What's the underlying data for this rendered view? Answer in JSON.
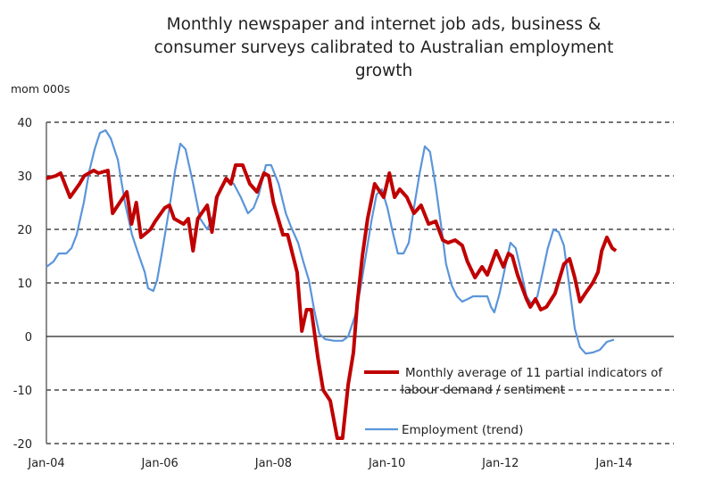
{
  "chart_data": {
    "type": "line",
    "title_lines": [
      "Monthly newspaper and internet job ads, business &",
      "consumer surveys calibrated to Australian employment",
      "growth"
    ],
    "ylabel": "mom 000s",
    "xlabel": "",
    "x_unit": "months since Jan-04",
    "xlim": [
      0,
      132
    ],
    "ylim": [
      -20,
      40
    ],
    "yticks": [
      -20,
      -10,
      0,
      10,
      20,
      30,
      40
    ],
    "xticks": [
      {
        "x": 0,
        "label": "Jan-04"
      },
      {
        "x": 24,
        "label": "Jan-06"
      },
      {
        "x": 48,
        "label": "Jan-08"
      },
      {
        "x": 72,
        "label": "Jan-10"
      },
      {
        "x": 96,
        "label": "Jan-12"
      },
      {
        "x": 120,
        "label": "Jan-14"
      }
    ],
    "grid": true,
    "legend_placement": "bottom-right",
    "series": [
      {
        "name": "Monthly average of 11 partial indicators of labour demand / sentiment",
        "legend_lines": [
          "Monthly average of 11 partial indicators of",
          "labour demand / sentiment"
        ],
        "color": "#C00000",
        "points": [
          [
            0,
            29.5
          ],
          [
            2,
            30
          ],
          [
            3,
            30.5
          ],
          [
            5,
            26
          ],
          [
            7,
            28.5
          ],
          [
            8,
            30
          ],
          [
            10,
            31
          ],
          [
            11,
            30.5
          ],
          [
            13,
            31
          ],
          [
            14,
            23
          ],
          [
            17,
            27
          ],
          [
            18,
            21
          ],
          [
            19,
            25
          ],
          [
            20,
            18.5
          ],
          [
            22,
            20
          ],
          [
            23,
            21.5
          ],
          [
            25,
            24
          ],
          [
            26,
            24.5
          ],
          [
            27,
            22
          ],
          [
            29,
            21
          ],
          [
            30,
            22
          ],
          [
            31,
            16
          ],
          [
            32,
            22
          ],
          [
            34,
            24.5
          ],
          [
            35,
            19.5
          ],
          [
            36,
            26
          ],
          [
            38,
            29.5
          ],
          [
            39,
            28.5
          ],
          [
            40,
            32
          ],
          [
            41.5,
            32
          ],
          [
            43,
            28.5
          ],
          [
            44.5,
            27
          ],
          [
            46,
            30.5
          ],
          [
            47,
            30
          ],
          [
            48,
            25
          ],
          [
            50,
            19
          ],
          [
            51,
            19
          ],
          [
            53,
            12
          ],
          [
            54,
            1
          ],
          [
            55,
            5
          ],
          [
            56,
            5
          ],
          [
            57.4,
            -4
          ],
          [
            58.5,
            -10
          ],
          [
            60,
            -12
          ],
          [
            61.5,
            -19
          ],
          [
            62.6,
            -19
          ],
          [
            63.8,
            -9
          ],
          [
            64.9,
            -3
          ],
          [
            65.7,
            6
          ],
          [
            66.8,
            15
          ],
          [
            67.9,
            22
          ],
          [
            69.4,
            28.5
          ],
          [
            71.3,
            26
          ],
          [
            72.5,
            30.5
          ],
          [
            73.6,
            26
          ],
          [
            74.7,
            27.5
          ],
          [
            76.2,
            26
          ],
          [
            77.7,
            23
          ],
          [
            79.2,
            24.5
          ],
          [
            80.8,
            21
          ],
          [
            82.3,
            21.5
          ],
          [
            83.8,
            18
          ],
          [
            84.9,
            17.5
          ],
          [
            86.4,
            18
          ],
          [
            87.9,
            17
          ],
          [
            89,
            14
          ],
          [
            90.6,
            11
          ],
          [
            92.1,
            13
          ],
          [
            93.2,
            11.5
          ],
          [
            95.1,
            16
          ],
          [
            96.6,
            13
          ],
          [
            97.7,
            15.5
          ],
          [
            98.5,
            15
          ],
          [
            99.6,
            11.5
          ],
          [
            101.5,
            7
          ],
          [
            102.3,
            5.5
          ],
          [
            103.4,
            7
          ],
          [
            104.5,
            5
          ],
          [
            105.7,
            5.5
          ],
          [
            107.5,
            8
          ],
          [
            109.4,
            13.5
          ],
          [
            110.6,
            14.5
          ],
          [
            111.7,
            11
          ],
          [
            112.8,
            6.5
          ],
          [
            113.9,
            8
          ],
          [
            115.5,
            10
          ],
          [
            116.6,
            12
          ],
          [
            117.4,
            16
          ],
          [
            118.5,
            18.5
          ],
          [
            119.6,
            16.5
          ],
          [
            120.4,
            16
          ]
        ]
      },
      {
        "name": "Employment (trend)",
        "legend_lines": [
          "Employment (trend)"
        ],
        "color": "#5B95DA",
        "points": [
          [
            0,
            13
          ],
          [
            1.5,
            14
          ],
          [
            2.6,
            15.5
          ],
          [
            4.2,
            15.5
          ],
          [
            5.3,
            16.5
          ],
          [
            6.4,
            19
          ],
          [
            7.9,
            25
          ],
          [
            9.1,
            31
          ],
          [
            10.2,
            35
          ],
          [
            11.3,
            38
          ],
          [
            12.5,
            38.5
          ],
          [
            13.6,
            37
          ],
          [
            15.1,
            33
          ],
          [
            16.6,
            25
          ],
          [
            18.1,
            19
          ],
          [
            19.6,
            15
          ],
          [
            20.8,
            12
          ],
          [
            21.5,
            9
          ],
          [
            22.6,
            8.5
          ],
          [
            23.4,
            10.5
          ],
          [
            24.5,
            16
          ],
          [
            26,
            24
          ],
          [
            27.2,
            31
          ],
          [
            28.3,
            36
          ],
          [
            29.4,
            35
          ],
          [
            30.9,
            29
          ],
          [
            32.5,
            22
          ],
          [
            34,
            20
          ],
          [
            35.5,
            23
          ],
          [
            36.6,
            27.5
          ],
          [
            38.1,
            29.5
          ],
          [
            39.6,
            28.5
          ],
          [
            41.1,
            26
          ],
          [
            42.6,
            23
          ],
          [
            43.8,
            24
          ],
          [
            44.9,
            26.5
          ],
          [
            46.4,
            32
          ],
          [
            47.5,
            32
          ],
          [
            49.1,
            28.5
          ],
          [
            50.6,
            23
          ],
          [
            51.7,
            20.5
          ],
          [
            53.2,
            17.5
          ],
          [
            54.3,
            14
          ],
          [
            55.5,
            10.5
          ],
          [
            56.6,
            5
          ],
          [
            57.7,
            0.5
          ],
          [
            58.9,
            -0.5
          ],
          [
            60.8,
            -0.8
          ],
          [
            62.6,
            -0.8
          ],
          [
            63.8,
            0
          ],
          [
            65.3,
            4
          ],
          [
            66.4,
            9
          ],
          [
            67.5,
            15
          ],
          [
            68.7,
            21.5
          ],
          [
            69.8,
            26.5
          ],
          [
            70.9,
            27.5
          ],
          [
            72.1,
            24
          ],
          [
            73.2,
            19.5
          ],
          [
            74.3,
            15.5
          ],
          [
            75.5,
            15.5
          ],
          [
            76.6,
            17.5
          ],
          [
            77.7,
            24
          ],
          [
            78.9,
            30.5
          ],
          [
            80,
            35.5
          ],
          [
            81.1,
            34.5
          ],
          [
            82.3,
            28
          ],
          [
            83.4,
            21
          ],
          [
            84.5,
            13.5
          ],
          [
            85.7,
            9.5
          ],
          [
            86.8,
            7.5
          ],
          [
            87.9,
            6.5
          ],
          [
            89.1,
            7
          ],
          [
            90.2,
            7.5
          ],
          [
            91.7,
            7.5
          ],
          [
            93.2,
            7.5
          ],
          [
            94,
            5.5
          ],
          [
            94.7,
            4.5
          ],
          [
            95.8,
            8
          ],
          [
            97,
            13
          ],
          [
            98.1,
            17.5
          ],
          [
            99.2,
            16.5
          ],
          [
            100.4,
            12
          ],
          [
            101.5,
            7.5
          ],
          [
            102.6,
            6
          ],
          [
            103.8,
            7.5
          ],
          [
            104.9,
            12
          ],
          [
            106,
            16.5
          ],
          [
            107.2,
            20
          ],
          [
            108.3,
            19.5
          ],
          [
            109.4,
            17
          ],
          [
            110.6,
            9
          ],
          [
            111.7,
            1.5
          ],
          [
            112.8,
            -2
          ],
          [
            114,
            -3.2
          ],
          [
            115.5,
            -3
          ],
          [
            117,
            -2.5
          ],
          [
            118.5,
            -1
          ],
          [
            120,
            -0.6
          ]
        ]
      }
    ]
  }
}
